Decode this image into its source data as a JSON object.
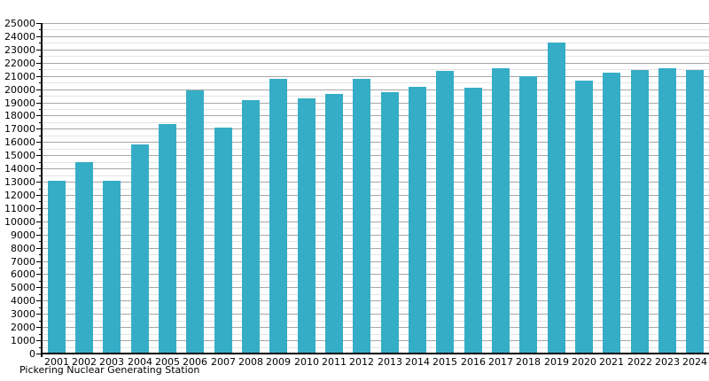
{
  "chart_data": {
    "type": "bar",
    "title": "Pickering Nuclear Generating Station",
    "xlabel": "",
    "ylabel": "",
    "categories": [
      "2001",
      "2002",
      "2003",
      "2004",
      "2005",
      "2006",
      "2007",
      "2008",
      "2009",
      "2010",
      "2011",
      "2012",
      "2013",
      "2014",
      "2015",
      "2016",
      "2017",
      "2018",
      "2019",
      "2020",
      "2021",
      "2022",
      "2023",
      "2024"
    ],
    "values": [
      13100,
      14500,
      13100,
      15850,
      17350,
      19900,
      17100,
      19200,
      20750,
      19300,
      19650,
      20800,
      19800,
      20150,
      21350,
      20100,
      21550,
      20950,
      23550,
      20650,
      21250,
      21450,
      21600,
      21450
    ],
    "ylim": [
      0,
      25000
    ],
    "y_major_step": 1000,
    "y_minor_step": 500,
    "grid": true,
    "legend_position": "none",
    "bar_color": "#36adc6",
    "major_grid_color": "#a6a6a6",
    "minor_grid_color": "#e4e4e4",
    "axis_color": "#000000",
    "text_color": "#000000"
  }
}
